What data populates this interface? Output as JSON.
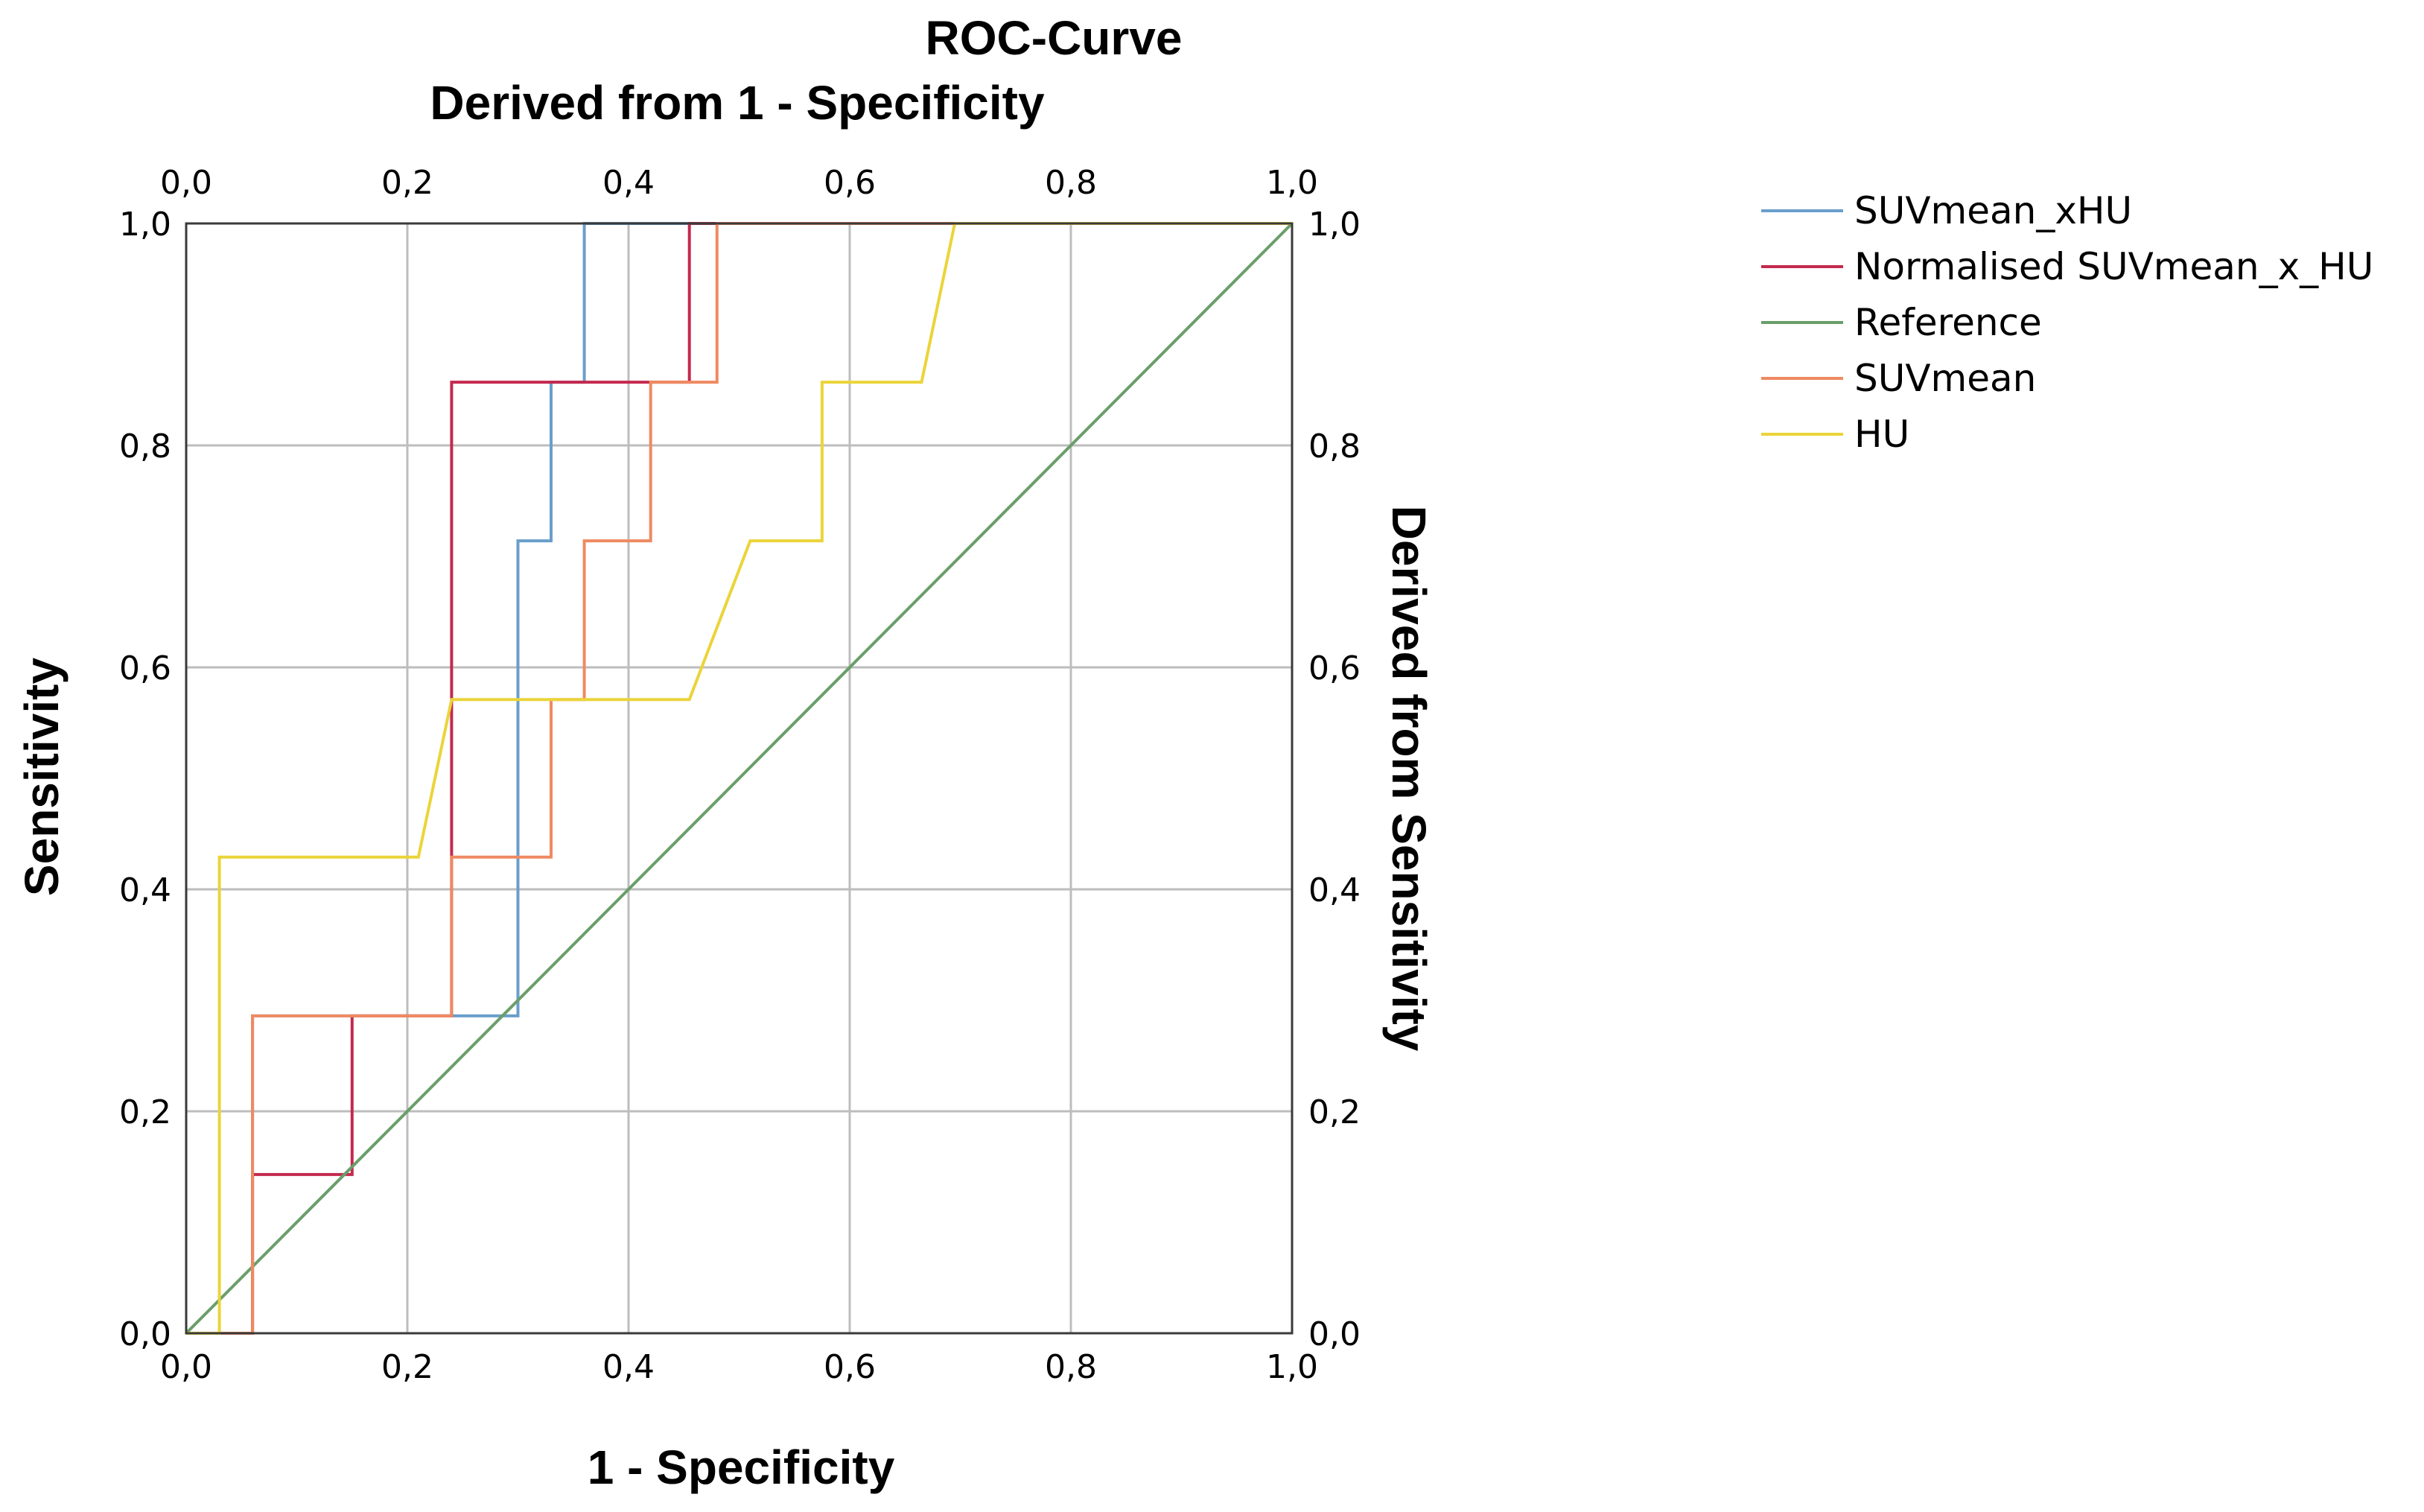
{
  "chart_data": {
    "type": "line",
    "title": "ROC-Curve",
    "top_axis_title": "Derived from 1 - Specificity",
    "right_axis_title": "Derived from Sensitivity",
    "xlabel": "1 - Specificity",
    "ylabel": "Sensitivity",
    "xlim": [
      0,
      1
    ],
    "ylim": [
      0,
      1
    ],
    "ticks": [
      0,
      0.2,
      0.4,
      0.6,
      0.8,
      1.0
    ],
    "tick_labels": [
      "0,0",
      "0,2",
      "0,4",
      "0,6",
      "0,8",
      "1,0"
    ],
    "grid": true,
    "legend_position": "top-right outside",
    "series": [
      {
        "name": "SUVmean_xHU",
        "color": "#6a9ecb",
        "x": [
          0,
          0.06,
          0.06,
          0.15,
          0.15,
          0.24,
          0.24,
          0.3,
          0.3,
          0.33,
          0.33,
          0.36,
          0.36,
          1.0
        ],
        "y": [
          0,
          0,
          0.286,
          0.286,
          0.286,
          0.286,
          0.286,
          0.286,
          0.714,
          0.714,
          0.857,
          0.857,
          1.0,
          1.0
        ]
      },
      {
        "name": "Normalised SUVmean_x_HU",
        "color": "#c4294e",
        "x": [
          0,
          0.06,
          0.06,
          0.15,
          0.15,
          0.24,
          0.24,
          0.455,
          0.455,
          1.0
        ],
        "y": [
          0,
          0,
          0.143,
          0.143,
          0.286,
          0.286,
          0.857,
          0.857,
          1.0,
          1.0
        ]
      },
      {
        "name": "Reference",
        "color": "#6a9e6a",
        "x": [
          0,
          1
        ],
        "y": [
          0,
          1
        ]
      },
      {
        "name": "SUVmean",
        "color": "#ef8a62",
        "x": [
          0,
          0.06,
          0.06,
          0.15,
          0.15,
          0.24,
          0.24,
          0.33,
          0.33,
          0.36,
          0.36,
          0.42,
          0.42,
          0.48,
          0.48,
          1.0
        ],
        "y": [
          0,
          0,
          0.286,
          0.286,
          0.286,
          0.286,
          0.429,
          0.429,
          0.571,
          0.571,
          0.714,
          0.714,
          0.857,
          0.857,
          1.0,
          1.0
        ]
      },
      {
        "name": "HU",
        "color": "#ebd43a",
        "x": [
          0,
          0.03,
          0.03,
          0.21,
          0.24,
          0.455,
          0.51,
          0.575,
          0.575,
          0.665,
          0.695,
          1.0
        ],
        "y": [
          0,
          0,
          0.429,
          0.429,
          0.571,
          0.571,
          0.714,
          0.714,
          0.857,
          0.857,
          1.0,
          1.0
        ]
      }
    ]
  }
}
